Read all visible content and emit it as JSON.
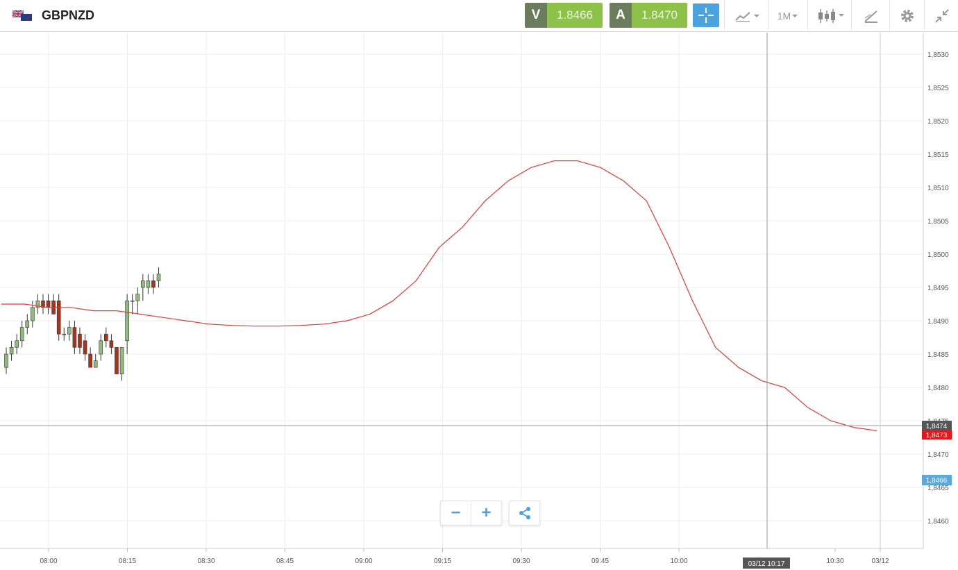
{
  "header": {
    "symbol": "GBPNZD",
    "flag_icon": "gb-nz-flag-icon",
    "sell_letter": "V",
    "sell_price": "1.8466",
    "buy_letter": "A",
    "buy_price": "1.8470",
    "timeframe_label": "1M",
    "toolbar_icons": [
      "crosshair-icon",
      "chart-type-icon",
      "timeframe-dropdown",
      "candlestick-icon",
      "drawing-tools-icon",
      "gear-icon",
      "collapse-icon"
    ]
  },
  "colors": {
    "up_candle": "#8fbc7a",
    "down_candle": "#a8341e",
    "moving_average": "#e53935",
    "accent": "#4aa3df",
    "buy_green": "#8dc149"
  },
  "crosshair_label": "03/12 10:17",
  "price_tags": {
    "crosshair_price": "1,8474",
    "ma_price": "1,8473",
    "last_price": "1,8466"
  },
  "controls": {
    "zoom_out": "−",
    "zoom_in": "+"
  },
  "chart_data": {
    "type": "candlestick",
    "symbol": "GBPNZD",
    "interval": "1M",
    "x_labels": [
      "08:00",
      "08:15",
      "08:30",
      "08:45",
      "09:00",
      "09:15",
      "09:30",
      "09:45",
      "10:00",
      "10:30",
      "03/12"
    ],
    "y_ticks": [
      "1,8460",
      "1,8465",
      "1,8470",
      "1,8475",
      "1,8480",
      "1,8485",
      "1,8490",
      "1,8495",
      "1,8500",
      "1,8505",
      "1,8510",
      "1,8515",
      "1,8520",
      "1,8525",
      "1,8530"
    ],
    "ylim": [
      1.8454,
      1.8534
    ],
    "grid": true,
    "moving_average": [
      1.84925,
      1.84925,
      1.8492,
      1.8492,
      1.84915,
      1.84915,
      1.8491,
      1.84905,
      1.849,
      1.84895,
      1.84893,
      1.84892,
      1.84892,
      1.84893,
      1.84895,
      1.849,
      1.8491,
      1.8493,
      1.8496,
      1.8501,
      1.8504,
      1.8508,
      1.8511,
      1.8513,
      1.8514,
      1.8514,
      1.8513,
      1.8511,
      1.8508,
      1.8501,
      1.8493,
      1.8486,
      1.8483,
      1.8481,
      1.848,
      1.8477,
      1.8475,
      1.8474,
      1.84735
    ],
    "candles": [
      [
        1.8483,
        1.8485,
        1.8482,
        1.8486
      ],
      [
        1.8485,
        1.8486,
        1.8484,
        1.8487
      ],
      [
        1.8486,
        1.8487,
        1.8485,
        1.8488
      ],
      [
        1.8487,
        1.8489,
        1.8486,
        1.849
      ],
      [
        1.8489,
        1.849,
        1.8488,
        1.8491
      ],
      [
        1.849,
        1.8492,
        1.8489,
        1.8493
      ],
      [
        1.8492,
        1.8493,
        1.8491,
        1.8494
      ],
      [
        1.8493,
        1.8492,
        1.8491,
        1.8494
      ],
      [
        1.8493,
        1.8492,
        1.8491,
        1.8494
      ],
      [
        1.8493,
        1.8491,
        1.8491,
        1.8494
      ],
      [
        1.8493,
        1.8488,
        1.8487,
        1.8494
      ],
      [
        1.8488,
        1.8488,
        1.8487,
        1.8489
      ],
      [
        1.8488,
        1.8489,
        1.8487,
        1.849
      ],
      [
        1.8489,
        1.8486,
        1.8485,
        1.849
      ],
      [
        1.8488,
        1.8486,
        1.8485,
        1.8489
      ],
      [
        1.8487,
        1.8485,
        1.8484,
        1.8488
      ],
      [
        1.8485,
        1.8483,
        1.8483,
        1.8486
      ],
      [
        1.8483,
        1.8484,
        1.8483,
        1.8485
      ],
      [
        1.8485,
        1.8487,
        1.8484,
        1.8488
      ],
      [
        1.8488,
        1.8487,
        1.8486,
        1.8489
      ],
      [
        1.8487,
        1.8486,
        1.8485,
        1.8488
      ],
      [
        1.8486,
        1.8482,
        1.8482,
        1.8486
      ],
      [
        1.8482,
        1.8486,
        1.8481,
        1.8486
      ],
      [
        1.8487,
        1.8493,
        1.8485,
        1.8494
      ],
      [
        1.8493,
        1.8493,
        1.8491,
        1.8494
      ],
      [
        1.8493,
        1.8494,
        1.8491,
        1.8495
      ],
      [
        1.8495,
        1.8496,
        1.8493,
        1.8497
      ],
      [
        1.8495,
        1.8496,
        1.8494,
        1.8497
      ],
      [
        1.8496,
        1.8495,
        1.8494,
        1.8497
      ],
      [
        1.8496,
        1.8497,
        1.8495,
        1.8498
      ]
    ]
  }
}
